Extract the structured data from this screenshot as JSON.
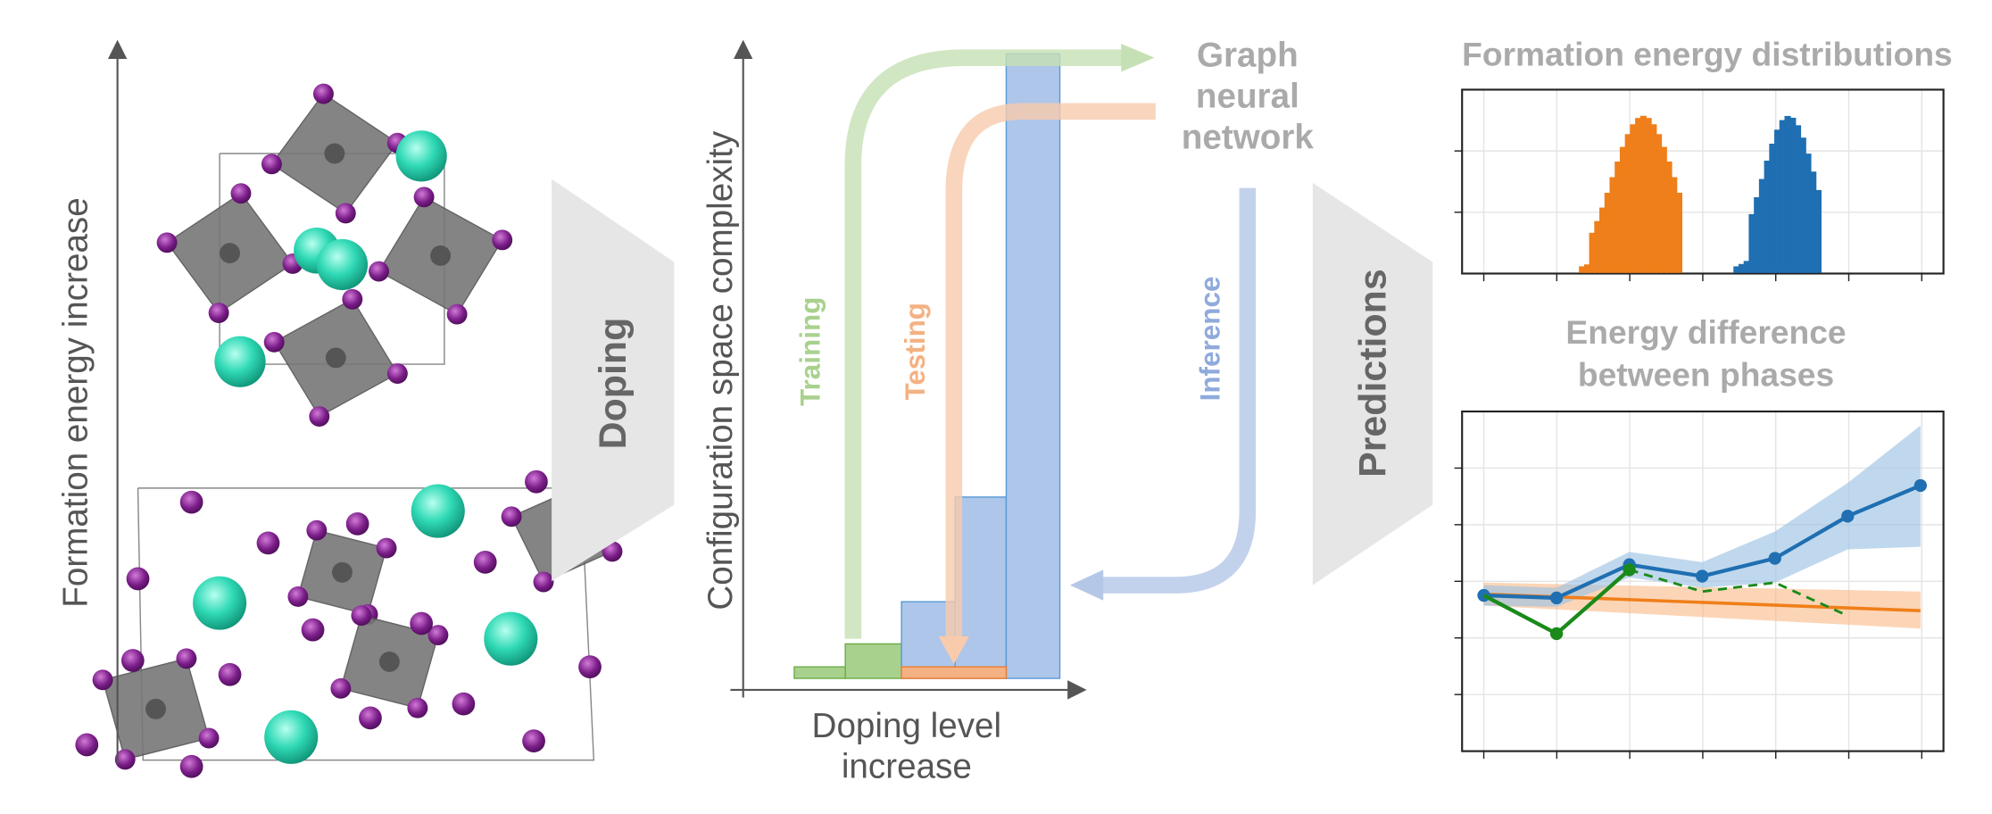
{
  "left_axis_label": "Formation energy increase",
  "doping_label": "Doping",
  "middle_chart": {
    "y_label": "Configuration space complexity",
    "x_label": [
      "Doping level",
      "increase"
    ]
  },
  "arrows": {
    "training": "Training",
    "testing": "Testing",
    "inference": "Inference"
  },
  "model_label": [
    "Graph",
    "neural",
    "network"
  ],
  "predictions_label": "Predictions",
  "top_right_title": "Formation energy distributions",
  "bottom_right_title": [
    "Energy difference",
    "between phases"
  ]
}
